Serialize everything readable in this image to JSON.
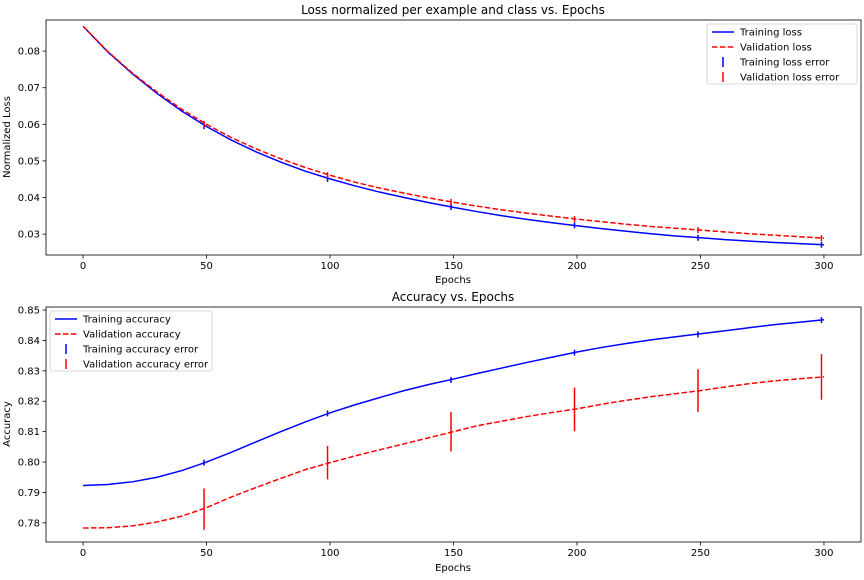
{
  "chart_data": [
    {
      "type": "line",
      "title": "Loss normalized per example and class vs. Epochs",
      "xlabel": "Epochs",
      "ylabel": "Normalized Loss",
      "xlim": [
        -15,
        315
      ],
      "ylim": [
        0.0243,
        0.0885
      ],
      "xticks": [
        0,
        50,
        100,
        150,
        200,
        250,
        300
      ],
      "yticks": [
        0.03,
        0.04,
        0.05,
        0.06,
        0.07,
        0.08
      ],
      "ytick_labels": [
        "0.03",
        "0.04",
        "0.05",
        "0.06",
        "0.07",
        "0.08"
      ],
      "legend_position": "top-right",
      "series": [
        {
          "name": "Training loss",
          "color": "#0000ff",
          "style": "solid",
          "x": [
            0,
            10,
            20,
            30,
            40,
            50,
            60,
            70,
            80,
            90,
            100,
            110,
            120,
            130,
            140,
            150,
            160,
            170,
            180,
            190,
            200,
            210,
            220,
            230,
            240,
            250,
            260,
            270,
            280,
            290,
            300
          ],
          "y": [
            0.0868,
            0.0798,
            0.0738,
            0.0684,
            0.0636,
            0.0594,
            0.0557,
            0.0525,
            0.0497,
            0.0472,
            0.0451,
            0.0432,
            0.0415,
            0.04,
            0.0386,
            0.0373,
            0.0361,
            0.035,
            0.034,
            0.0331,
            0.0323,
            0.0315,
            0.0308,
            0.0301,
            0.0295,
            0.029,
            0.0285,
            0.0281,
            0.0277,
            0.0274,
            0.0271
          ]
        },
        {
          "name": "Validation loss",
          "color": "#ff0000",
          "style": "dashed",
          "x": [
            0,
            10,
            20,
            30,
            40,
            50,
            60,
            70,
            80,
            90,
            100,
            110,
            120,
            130,
            140,
            150,
            160,
            170,
            180,
            190,
            200,
            210,
            220,
            230,
            240,
            250,
            260,
            270,
            280,
            290,
            300
          ],
          "y": [
            0.0868,
            0.0799,
            0.074,
            0.0688,
            0.0641,
            0.06,
            0.0564,
            0.0533,
            0.0506,
            0.0482,
            0.0461,
            0.0442,
            0.0426,
            0.0412,
            0.0399,
            0.0387,
            0.0376,
            0.0366,
            0.0357,
            0.0349,
            0.0341,
            0.0334,
            0.0327,
            0.0321,
            0.0316,
            0.0311,
            0.0306,
            0.0301,
            0.0297,
            0.0293,
            0.0289
          ]
        }
      ],
      "error_series": [
        {
          "name": "Training loss error",
          "color": "#0000ff",
          "x": [
            49,
            99,
            149,
            199,
            249,
            299
          ],
          "y": [
            0.0595,
            0.0451,
            0.0374,
            0.0324,
            0.029,
            0.0271
          ],
          "err": [
            0.0001,
            0.0001,
            0.0001,
            0.0001,
            0.0001,
            0.0001
          ]
        },
        {
          "name": "Validation loss error",
          "color": "#ff0000",
          "x": [
            49,
            99,
            149,
            199,
            249,
            299
          ],
          "y": [
            0.0601,
            0.0461,
            0.0388,
            0.0341,
            0.0311,
            0.0289
          ],
          "err": [
            0.0002,
            0.0002,
            0.0002,
            0.0002,
            0.0002,
            0.0002
          ]
        }
      ]
    },
    {
      "type": "line",
      "title": "Accuracy vs. Epochs",
      "xlabel": "Epochs",
      "ylabel": "Accuracy",
      "xlim": [
        -15,
        315
      ],
      "ylim": [
        0.7737,
        0.851
      ],
      "xticks": [
        0,
        50,
        100,
        150,
        200,
        250,
        300
      ],
      "yticks": [
        0.78,
        0.79,
        0.8,
        0.81,
        0.82,
        0.83,
        0.84,
        0.85
      ],
      "ytick_labels": [
        "0.78",
        "0.79",
        "0.80",
        "0.81",
        "0.82",
        "0.83",
        "0.84",
        "0.85"
      ],
      "legend_position": "top-left",
      "series": [
        {
          "name": "Training accuracy",
          "color": "#0000ff",
          "style": "solid",
          "x": [
            0,
            10,
            20,
            30,
            40,
            50,
            60,
            70,
            80,
            90,
            100,
            110,
            120,
            130,
            140,
            150,
            160,
            170,
            180,
            190,
            200,
            210,
            220,
            230,
            240,
            250,
            260,
            270,
            280,
            290,
            300
          ],
          "y": [
            0.7923,
            0.7926,
            0.7935,
            0.795,
            0.7972,
            0.8,
            0.8032,
            0.8066,
            0.81,
            0.8132,
            0.8162,
            0.8188,
            0.8212,
            0.8235,
            0.8255,
            0.8273,
            0.8292,
            0.831,
            0.8328,
            0.8345,
            0.8362,
            0.8377,
            0.839,
            0.8402,
            0.8412,
            0.8422,
            0.8432,
            0.8442,
            0.8452,
            0.846,
            0.8468
          ]
        },
        {
          "name": "Validation accuracy",
          "color": "#ff0000",
          "style": "dashed",
          "x": [
            0,
            10,
            20,
            30,
            40,
            50,
            60,
            70,
            80,
            90,
            100,
            110,
            120,
            130,
            140,
            150,
            160,
            170,
            180,
            190,
            200,
            210,
            220,
            230,
            240,
            250,
            260,
            270,
            280,
            290,
            300
          ],
          "y": [
            0.7783,
            0.7784,
            0.779,
            0.7803,
            0.7822,
            0.785,
            0.7885,
            0.7916,
            0.7946,
            0.7975,
            0.7998,
            0.802,
            0.804,
            0.806,
            0.808,
            0.81,
            0.812,
            0.8135,
            0.815,
            0.8163,
            0.8175,
            0.819,
            0.8203,
            0.8215,
            0.8225,
            0.8235,
            0.8247,
            0.8258,
            0.8267,
            0.8274,
            0.828
          ]
        }
      ],
      "error_series": [
        {
          "name": "Training accuracy error",
          "color": "#0000ff",
          "x": [
            49,
            99,
            149,
            199,
            249,
            299
          ],
          "y": [
            0.7998,
            0.816,
            0.827,
            0.836,
            0.842,
            0.8467
          ],
          "err": [
            0.0008,
            0.0008,
            0.0008,
            0.0008,
            0.0008,
            0.0008
          ]
        },
        {
          "name": "Validation accuracy error",
          "color": "#ff0000",
          "x": [
            49,
            99,
            149,
            199,
            249,
            299
          ],
          "y": [
            0.7845,
            0.7998,
            0.81,
            0.8173,
            0.8235,
            0.828
          ],
          "err": [
            0.0068,
            0.0055,
            0.0065,
            0.0072,
            0.007,
            0.0075
          ]
        }
      ]
    }
  ]
}
